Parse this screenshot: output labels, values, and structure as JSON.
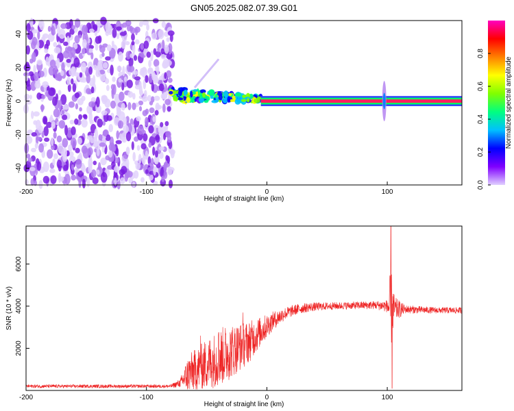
{
  "title": "GN05.2025.082.07.39.G01",
  "chart_data": [
    {
      "type": "heatmap",
      "name": "spectrogram",
      "xlabel": "Height of straight line (km)",
      "ylabel": "Frequency (Hz)",
      "xlim": [
        -200,
        162
      ],
      "ylim": [
        -50,
        48
      ],
      "xticks": [
        -200,
        -100,
        0,
        100
      ],
      "yticks": [
        -40,
        -20,
        0,
        20,
        40
      ],
      "colorbar": {
        "label": "Normalized spectral amplitude",
        "range": [
          0,
          1
        ],
        "ticks": [
          "0.0",
          "0.2",
          "0.4",
          "0.6",
          "0.8"
        ],
        "colormap": [
          "#e0d0ff",
          "#8000ff",
          "#0000ff",
          "#00c0ff",
          "#00ff80",
          "#80ff00",
          "#ffff00",
          "#ff8000",
          "#ff0000",
          "#ff00c0"
        ]
      },
      "regions": [
        {
          "x": [
            -200,
            -78
          ],
          "freq": [
            -50,
            48
          ],
          "amplitude": 0.05,
          "note": "noise"
        },
        {
          "x": [
            -80,
            -5
          ],
          "freq": [
            -2,
            10
          ],
          "amplitude": 0.35,
          "note": "onset"
        },
        {
          "x": [
            -5,
            162
          ],
          "freq": [
            0,
            1
          ],
          "amplitude": 0.95,
          "note": "carrier"
        },
        {
          "x": [
            96,
            99
          ],
          "freq": [
            -12,
            15
          ],
          "amplitude": 0.3,
          "note": "spike"
        }
      ]
    },
    {
      "type": "line",
      "name": "snr",
      "xlabel": "Height of straight line (km)",
      "ylabel": "SNR (10 * v/v)",
      "xlim": [
        -200,
        162
      ],
      "ylim": [
        0,
        7800
      ],
      "xticks": [
        -200,
        -100,
        0,
        100
      ],
      "yticks": [
        2000,
        4000,
        6000
      ],
      "color": "#ee2222",
      "envelope": {
        "x": [
          -200,
          -80,
          -72,
          -65,
          -55,
          -45,
          -35,
          -25,
          -15,
          -5,
          5,
          15,
          25,
          35,
          50,
          70,
          90,
          100,
          103,
          106,
          115,
          140,
          162
        ],
        "base": [
          200,
          200,
          350,
          800,
          1100,
          1400,
          1700,
          2000,
          2300,
          2800,
          3300,
          3650,
          3850,
          3950,
          4000,
          4030,
          4050,
          4000,
          3900,
          3850,
          3850,
          3800,
          3800
        ],
        "amp": [
          80,
          80,
          200,
          900,
          1100,
          1300,
          1400,
          1200,
          1000,
          700,
          450,
          300,
          250,
          220,
          180,
          180,
          200,
          300,
          2000,
          600,
          200,
          150,
          150
        ]
      },
      "peaks": [
        {
          "x": 103,
          "y": 7800
        },
        {
          "x": 104,
          "y": 100
        },
        {
          "x": -55,
          "y": 2600
        },
        {
          "x": -40,
          "y": 2750
        },
        {
          "x": -20,
          "y": 3700
        }
      ]
    }
  ]
}
